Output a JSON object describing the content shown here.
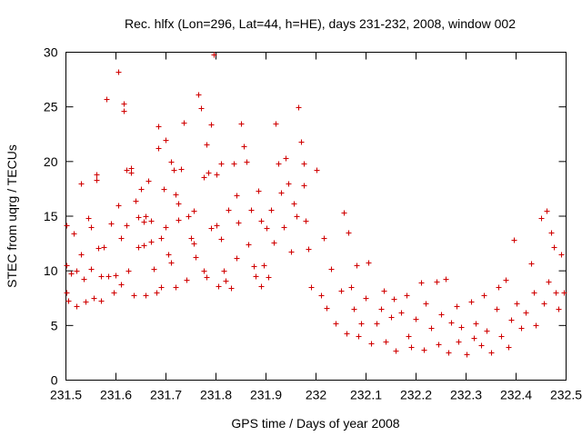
{
  "chart_data": {
    "type": "scatter",
    "title": "Rec. hlfx (Lon=296, Lat=44, h=HE), days 231-232, 2008, window 002",
    "xlabel": "GPS time / Days of year 2008",
    "ylabel": "STEC from uqrg / TECUs",
    "xlim": [
      231.5,
      232.5
    ],
    "ylim": [
      0,
      30
    ],
    "xticks": [
      231.5,
      231.6,
      231.7,
      231.8,
      231.9,
      232,
      232.1,
      232.2,
      232.3,
      232.4,
      232.5
    ],
    "xtick_labels": [
      "231.5",
      "231.6",
      "231.7",
      "231.8",
      "231.9",
      "232",
      "232.1",
      "232.2",
      "232.3",
      "232.4",
      "232.5"
    ],
    "yticks": [
      0,
      5,
      10,
      15,
      20,
      25,
      30
    ],
    "ytick_labels": [
      "0",
      "5",
      "10",
      "15",
      "20",
      "25",
      "30"
    ],
    "marker": "+",
    "color": "#d00000",
    "series": [
      {
        "name": "STEC",
        "points": [
          [
            231.5,
            14.2
          ],
          [
            231.5,
            10.5
          ],
          [
            231.5,
            8.0
          ],
          [
            231.505,
            7.3
          ],
          [
            231.51,
            9.8
          ],
          [
            231.515,
            13.4
          ],
          [
            231.52,
            10.0
          ],
          [
            231.52,
            6.8
          ],
          [
            231.53,
            18.0
          ],
          [
            231.53,
            11.5
          ],
          [
            231.535,
            9.3
          ],
          [
            231.54,
            7.2
          ],
          [
            231.545,
            14.8
          ],
          [
            231.55,
            14.0
          ],
          [
            231.55,
            10.2
          ],
          [
            231.555,
            7.5
          ],
          [
            231.56,
            18.8
          ],
          [
            231.56,
            18.3
          ],
          [
            231.565,
            12.1
          ],
          [
            231.57,
            9.5
          ],
          [
            231.57,
            7.3
          ],
          [
            231.575,
            12.2
          ],
          [
            231.58,
            25.7
          ],
          [
            231.585,
            9.5
          ],
          [
            231.59,
            14.3
          ],
          [
            231.595,
            8.0
          ],
          [
            231.6,
            9.6
          ],
          [
            231.605,
            28.2
          ],
          [
            231.605,
            16.0
          ],
          [
            231.61,
            13.0
          ],
          [
            231.61,
            8.8
          ],
          [
            231.615,
            25.3
          ],
          [
            231.615,
            24.6
          ],
          [
            231.62,
            19.2
          ],
          [
            231.62,
            14.2
          ],
          [
            231.625,
            10.0
          ],
          [
            231.63,
            19.4
          ],
          [
            231.63,
            19.0
          ],
          [
            231.635,
            7.8
          ],
          [
            231.64,
            16.4
          ],
          [
            231.645,
            14.9
          ],
          [
            231.645,
            12.2
          ],
          [
            231.65,
            17.5
          ],
          [
            231.655,
            14.5
          ],
          [
            231.655,
            12.3
          ],
          [
            231.66,
            15.0
          ],
          [
            231.66,
            7.8
          ],
          [
            231.665,
            18.2
          ],
          [
            231.67,
            14.6
          ],
          [
            231.67,
            12.7
          ],
          [
            231.675,
            10.2
          ],
          [
            231.68,
            8.0
          ],
          [
            231.685,
            23.2
          ],
          [
            231.685,
            21.2
          ],
          [
            231.69,
            13.0
          ],
          [
            231.69,
            8.5
          ],
          [
            231.695,
            17.5
          ],
          [
            231.7,
            22.0
          ],
          [
            231.7,
            14.0
          ],
          [
            231.705,
            11.5
          ],
          [
            231.71,
            20.0
          ],
          [
            231.71,
            10.8
          ],
          [
            231.715,
            19.2
          ],
          [
            231.72,
            17.0
          ],
          [
            231.72,
            8.5
          ],
          [
            231.725,
            16.2
          ],
          [
            231.725,
            14.7
          ],
          [
            231.73,
            19.3
          ],
          [
            231.735,
            23.6
          ],
          [
            231.74,
            9.2
          ],
          [
            231.745,
            15.0
          ],
          [
            231.75,
            13.0
          ],
          [
            231.755,
            15.5
          ],
          [
            231.755,
            12.5
          ],
          [
            231.76,
            11.3
          ],
          [
            231.765,
            26.1
          ],
          [
            231.77,
            24.9
          ],
          [
            231.775,
            18.6
          ],
          [
            231.775,
            10.0
          ],
          [
            231.78,
            21.6
          ],
          [
            231.78,
            9.4
          ],
          [
            231.785,
            19.0
          ],
          [
            231.79,
            23.4
          ],
          [
            231.79,
            13.9
          ],
          [
            231.795,
            29.8
          ],
          [
            231.8,
            18.8
          ],
          [
            231.8,
            14.2
          ],
          [
            231.805,
            8.6
          ],
          [
            231.81,
            19.8
          ],
          [
            231.81,
            12.9
          ],
          [
            231.815,
            10.0
          ],
          [
            231.82,
            9.1
          ],
          [
            231.825,
            15.6
          ],
          [
            231.83,
            8.4
          ],
          [
            231.835,
            19.8
          ],
          [
            231.84,
            16.9
          ],
          [
            231.84,
            11.2
          ],
          [
            231.845,
            14.4
          ],
          [
            231.85,
            23.5
          ],
          [
            231.855,
            21.4
          ],
          [
            231.86,
            20.0
          ],
          [
            231.865,
            12.4
          ],
          [
            231.87,
            15.6
          ],
          [
            231.875,
            10.4
          ],
          [
            231.88,
            9.5
          ],
          [
            231.885,
            17.3
          ],
          [
            231.89,
            14.6
          ],
          [
            231.89,
            8.6
          ],
          [
            231.895,
            10.5
          ],
          [
            231.9,
            13.9
          ],
          [
            231.905,
            9.4
          ],
          [
            231.91,
            15.6
          ],
          [
            231.915,
            12.6
          ],
          [
            231.92,
            23.5
          ],
          [
            231.925,
            19.8
          ],
          [
            231.93,
            17.2
          ],
          [
            231.935,
            14.0
          ],
          [
            231.94,
            20.3
          ],
          [
            231.945,
            18.0
          ],
          [
            231.95,
            11.8
          ],
          [
            231.955,
            16.2
          ],
          [
            231.96,
            15.0
          ],
          [
            231.965,
            25.0
          ],
          [
            231.97,
            21.8
          ],
          [
            231.975,
            19.8
          ],
          [
            231.975,
            17.8
          ],
          [
            231.98,
            14.6
          ],
          [
            231.985,
            12.0
          ],
          [
            231.99,
            8.5
          ],
          [
            232.0,
            19.2
          ],
          [
            232.01,
            7.8
          ],
          [
            232.015,
            13.0
          ],
          [
            232.02,
            6.6
          ],
          [
            232.03,
            10.2
          ],
          [
            232.04,
            5.2
          ],
          [
            232.05,
            8.2
          ],
          [
            232.055,
            15.3
          ],
          [
            232.06,
            4.3
          ],
          [
            232.065,
            13.5
          ],
          [
            232.07,
            8.5
          ],
          [
            232.075,
            6.5
          ],
          [
            232.08,
            10.5
          ],
          [
            232.085,
            4.0
          ],
          [
            232.09,
            5.2
          ],
          [
            232.1,
            7.5
          ],
          [
            232.105,
            10.8
          ],
          [
            232.11,
            3.4
          ],
          [
            232.12,
            5.2
          ],
          [
            232.13,
            6.5
          ],
          [
            232.135,
            8.2
          ],
          [
            232.14,
            3.5
          ],
          [
            232.15,
            5.8
          ],
          [
            232.155,
            7.4
          ],
          [
            232.16,
            2.7
          ],
          [
            232.17,
            6.2
          ],
          [
            232.18,
            7.8
          ],
          [
            232.185,
            4.0
          ],
          [
            232.19,
            3.0
          ],
          [
            232.2,
            5.6
          ],
          [
            232.21,
            8.9
          ],
          [
            232.215,
            2.8
          ],
          [
            232.22,
            7.0
          ],
          [
            232.23,
            4.8
          ],
          [
            232.24,
            9.0
          ],
          [
            232.245,
            3.3
          ],
          [
            232.25,
            6.0
          ],
          [
            232.26,
            9.3
          ],
          [
            232.265,
            2.5
          ],
          [
            232.27,
            5.3
          ],
          [
            232.28,
            6.8
          ],
          [
            232.285,
            3.5
          ],
          [
            232.29,
            4.9
          ],
          [
            232.3,
            2.4
          ],
          [
            232.31,
            7.2
          ],
          [
            232.315,
            3.9
          ],
          [
            232.32,
            5.2
          ],
          [
            232.33,
            3.2
          ],
          [
            232.335,
            7.8
          ],
          [
            232.34,
            4.5
          ],
          [
            232.35,
            2.5
          ],
          [
            232.36,
            6.5
          ],
          [
            232.365,
            8.5
          ],
          [
            232.37,
            4.0
          ],
          [
            232.38,
            9.2
          ],
          [
            232.385,
            3.0
          ],
          [
            232.39,
            5.5
          ],
          [
            232.395,
            12.8
          ],
          [
            232.4,
            7.0
          ],
          [
            232.41,
            4.8
          ],
          [
            232.42,
            6.2
          ],
          [
            232.43,
            10.7
          ],
          [
            232.435,
            8.0
          ],
          [
            232.44,
            5.0
          ],
          [
            232.45,
            14.8
          ],
          [
            232.455,
            7.0
          ],
          [
            232.46,
            15.5
          ],
          [
            232.465,
            9.0
          ],
          [
            232.47,
            13.5
          ],
          [
            232.475,
            12.2
          ],
          [
            232.48,
            8.0
          ],
          [
            232.485,
            6.5
          ],
          [
            232.49,
            11.5
          ],
          [
            232.495,
            8.0
          ]
        ]
      }
    ]
  }
}
